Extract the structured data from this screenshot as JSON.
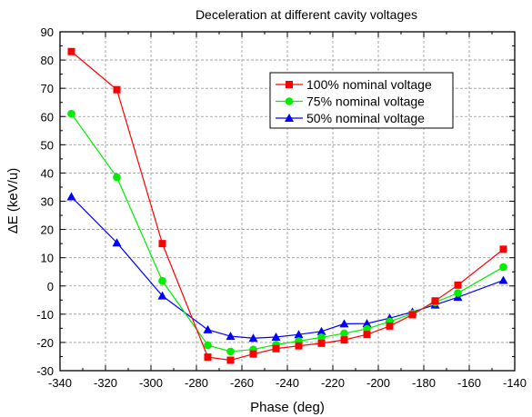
{
  "chart_data": {
    "type": "line",
    "title": "Deceleration at different cavity voltages",
    "xlabel": "Phase (deg)",
    "ylabel": "ΔE (keV/u)",
    "xlim": [
      -340,
      -140
    ],
    "ylim": [
      -30,
      90
    ],
    "x_ticks": [
      -340,
      -320,
      -300,
      -280,
      -260,
      -240,
      -220,
      -200,
      -180,
      -160,
      -140
    ],
    "y_ticks": [
      -30,
      -20,
      -10,
      0,
      10,
      20,
      30,
      40,
      50,
      60,
      70,
      80,
      90
    ],
    "grid": true,
    "legend_position": "top-right",
    "x": [
      -335,
      -315,
      -295,
      -275,
      -265,
      -255,
      -245,
      -235,
      -225,
      -215,
      -205,
      -195,
      -185,
      -175,
      -165,
      -145
    ],
    "series": [
      {
        "name": "100% nominal voltage",
        "color": "#ff0000",
        "marker": "square",
        "values": [
          83,
          69.5,
          15,
          -25.2,
          -26.3,
          -24.1,
          -22.2,
          -21.2,
          -20.3,
          -19.1,
          -17.2,
          -14.2,
          -10.2,
          -5.3,
          0.3,
          13
        ]
      },
      {
        "name": "75% nominal voltage",
        "color": "#00ee00",
        "marker": "circle",
        "values": [
          61,
          38.5,
          1.8,
          -21,
          -23.2,
          -22.5,
          -20.8,
          -19.5,
          -18.2,
          -16.8,
          -15.2,
          -12.6,
          -9.8,
          -5.8,
          -2.5,
          6.7
        ]
      },
      {
        "name": "50% nominal voltage",
        "color": "#0000ff",
        "marker": "triangle",
        "values": [
          31.6,
          15.3,
          -3.5,
          -15.5,
          -17.8,
          -18.5,
          -18.1,
          -17.2,
          -16.1,
          -13.4,
          -13.3,
          -11.4,
          -9.2,
          -6.7,
          -4,
          2
        ]
      }
    ]
  }
}
